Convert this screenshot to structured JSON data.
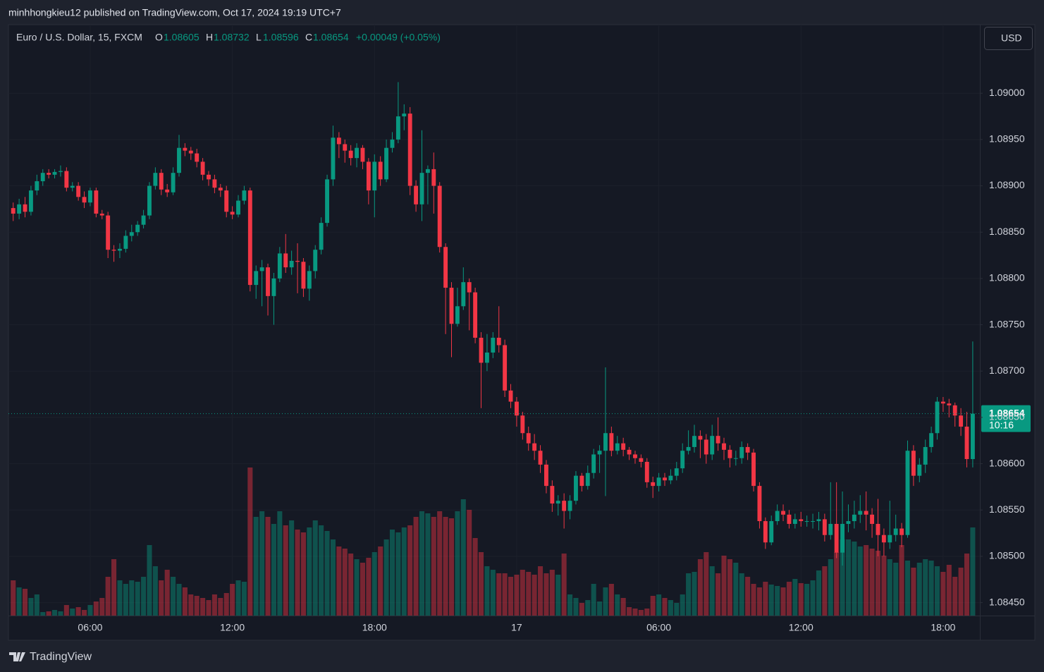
{
  "header": "minhhongkieu12 published on TradingView.com, Oct 17, 2024 19:19 UTC+7",
  "brand": "TradingView",
  "chart_data": {
    "type": "candlestick",
    "title": "Euro / U.S. Dollar, 15, FXCM",
    "legend_keys": [
      "O",
      "H",
      "L",
      "C"
    ],
    "change_label": "+0.00049 (+0.05%)",
    "currency": "USD",
    "countdown": "10:16",
    "up_color": "#089981",
    "down_color": "#f23645",
    "grid": true,
    "xlim": [
      -0.8,
      163.2
    ],
    "xticks": [
      {
        "value": 13,
        "label": "06:00"
      },
      {
        "value": 37,
        "label": "12:00"
      },
      {
        "value": 61,
        "label": "18:00"
      },
      {
        "value": 85,
        "label": "17"
      },
      {
        "value": 109,
        "label": "06:00"
      },
      {
        "value": 133,
        "label": "12:00"
      },
      {
        "value": 157,
        "label": "18:00"
      }
    ],
    "ylim": [
      1.08436,
      1.09074
    ],
    "yticks": [
      {
        "value": 1.0845,
        "label": "1.08450"
      },
      {
        "value": 1.085,
        "label": "1.08500"
      },
      {
        "value": 1.0855,
        "label": "1.08550"
      },
      {
        "value": 1.086,
        "label": "1.08600"
      },
      {
        "value": 1.0865,
        "label": "1.08650"
      },
      {
        "value": 1.087,
        "label": "1.08700"
      },
      {
        "value": 1.0875,
        "label": "1.08750"
      },
      {
        "value": 1.088,
        "label": "1.08800"
      },
      {
        "value": 1.0885,
        "label": "1.08850"
      },
      {
        "value": 1.089,
        "label": "1.08900"
      },
      {
        "value": 1.0895,
        "label": "1.08950"
      },
      {
        "value": 1.09,
        "label": "1.09000"
      }
    ],
    "open": [
      1.08876,
      1.0887,
      1.0888,
      1.08872,
      1.08895,
      1.08905,
      1.08914,
      1.08912,
      1.08915,
      1.08916,
      1.08898,
      1.089,
      1.08888,
      1.08882,
      1.08895,
      1.0887,
      1.08868,
      1.08831,
      1.0883,
      1.08832,
      1.08846,
      1.0885,
      1.08858,
      1.08868,
      1.089,
      1.08914,
      1.08896,
      1.08893,
      1.08914,
      1.08941,
      1.08938,
      1.08935,
      1.08926,
      1.08912,
      1.08907,
      1.08898,
      1.08895,
      1.08872,
      1.08869,
      1.08884,
      1.08895,
      1.08793,
      1.08808,
      1.08812,
      1.08781,
      1.088,
      1.08827,
      1.08812,
      1.08819,
      1.08818,
      1.08789,
      1.08808,
      1.08831,
      1.0886,
      1.08907,
      1.08952,
      1.08945,
      1.08938,
      1.0893,
      1.08941,
      1.08926,
      1.08895,
      1.08926,
      1.08907,
      1.08941,
      1.0895,
      1.08975,
      1.08978,
      1.089,
      1.0888,
      1.08914,
      1.08918,
      1.089,
      1.08834,
      1.0879,
      1.08751,
      1.0877,
      1.08796,
      1.08785,
      1.08736,
      1.08709,
      1.0872,
      1.08736,
      1.08728,
      1.08679,
      1.08667,
      1.08652,
      1.08633,
      1.08622,
      1.08614,
      1.08599,
      1.08576,
      1.08557,
      1.0856,
      1.08549,
      1.0856,
      1.08587,
      1.08576,
      1.0859,
      1.0861,
      1.08614,
      1.08633,
      1.08614,
      1.08622,
      1.08615,
      1.0861,
      1.08606,
      1.08602,
      1.0858,
      1.08576,
      1.08585,
      1.08582,
      1.08587,
      1.08595,
      1.08614,
      1.08618,
      1.0863,
      1.08626,
      1.0861,
      1.0863,
      1.08622,
      1.08615,
      1.08606,
      1.08606,
      1.08618,
      1.08612,
      1.08576,
      1.08538,
      1.08515,
      1.08538,
      1.08549,
      1.08545,
      1.08535,
      1.0854,
      1.08538,
      1.08538,
      1.08538,
      1.0854,
      1.08523,
      1.08535,
      1.08504,
      1.08535,
      1.08538,
      1.08545,
      1.08549,
      1.08545,
      1.08535,
      1.08523,
      1.08515,
      1.08523,
      1.0853,
      1.08523,
      1.08614,
      1.08587,
      1.08599,
      1.08618,
      1.08633,
      1.08667,
      1.08665,
      1.08663,
      1.08652,
      1.0864,
      1.08605
    ],
    "high": [
      1.08882,
      1.08886,
      1.08888,
      1.089,
      1.08912,
      1.08918,
      1.08918,
      1.08918,
      1.08922,
      1.0892,
      1.08904,
      1.08904,
      1.08894,
      1.08898,
      1.08898,
      1.08874,
      1.08872,
      1.08836,
      1.08838,
      1.08852,
      1.08858,
      1.08862,
      1.08874,
      1.08904,
      1.0892,
      1.08918,
      1.08902,
      1.0892,
      1.08955,
      1.08946,
      1.08942,
      1.0894,
      1.0893,
      1.08916,
      1.08912,
      1.08902,
      1.089,
      1.08878,
      1.0889,
      1.089,
      1.08898,
      1.08814,
      1.0882,
      1.08816,
      1.08806,
      1.08834,
      1.08848,
      1.0883,
      1.08838,
      1.08822,
      1.08814,
      1.08836,
      1.08866,
      1.08912,
      1.08965,
      1.08958,
      1.0895,
      1.08944,
      1.08946,
      1.08944,
      1.0893,
      1.08934,
      1.08932,
      1.0895,
      1.08958,
      1.09012,
      1.08988,
      1.08985,
      1.08906,
      1.0896,
      1.08922,
      1.08936,
      1.08904,
      1.08838,
      1.08796,
      1.0879,
      1.08812,
      1.088,
      1.0879,
      1.08742,
      1.0874,
      1.08742,
      1.0877,
      1.08734,
      1.08686,
      1.08672,
      1.08656,
      1.0864,
      1.08632,
      1.0862,
      1.08604,
      1.08582,
      1.08566,
      1.08568,
      1.08566,
      1.08592,
      1.0859,
      1.08598,
      1.08616,
      1.0862,
      1.08704,
      1.0864,
      1.0863,
      1.08628,
      1.08618,
      1.08614,
      1.0861,
      1.08606,
      1.08586,
      1.0859,
      1.0859,
      1.08594,
      1.08602,
      1.08622,
      1.08636,
      1.08642,
      1.08636,
      1.08632,
      1.08642,
      1.0865,
      1.08628,
      1.0862,
      1.08614,
      1.08624,
      1.08622,
      1.08616,
      1.0858,
      1.08542,
      1.08544,
      1.08556,
      1.08556,
      1.0855,
      1.08546,
      1.08548,
      1.08544,
      1.08546,
      1.08548,
      1.08546,
      1.0858,
      1.0858,
      1.0857,
      1.08556,
      1.0856,
      1.08566,
      1.0857,
      1.08552,
      1.08562,
      1.0853,
      1.0856,
      1.08545,
      1.08536,
      1.08625,
      1.0862,
      1.08606,
      1.08626,
      1.0864,
      1.08672,
      1.08672,
      1.0867,
      1.08666,
      1.0866,
      1.08656,
      1.08732
    ],
    "low": [
      1.08862,
      1.08864,
      1.08866,
      1.08868,
      1.0889,
      1.089,
      1.08908,
      1.08908,
      1.0891,
      1.08894,
      1.08894,
      1.08884,
      1.08876,
      1.08878,
      1.08866,
      1.08864,
      1.08822,
      1.08818,
      1.08822,
      1.08828,
      1.0884,
      1.08846,
      1.08854,
      1.08864,
      1.08896,
      1.0889,
      1.08888,
      1.0889,
      1.0891,
      1.08932,
      1.08928,
      1.0892,
      1.08906,
      1.089,
      1.08892,
      1.08888,
      1.08866,
      1.08864,
      1.08866,
      1.0888,
      1.08786,
      1.08778,
      1.0877,
      1.0876,
      1.0875,
      1.08796,
      1.08806,
      1.08804,
      1.08784,
      1.0878,
      1.08776,
      1.088,
      1.08826,
      1.08856,
      1.089,
      1.0893,
      1.08925,
      1.08922,
      1.0892,
      1.08918,
      1.0888,
      1.08866,
      1.089,
      1.08904,
      1.08936,
      1.08946,
      1.0896,
      1.0889,
      1.08872,
      1.08862,
      1.0888,
      1.0887,
      1.08828,
      1.0874,
      1.08715,
      1.08748,
      1.08766,
      1.08744,
      1.0873,
      1.0866,
      1.087,
      1.08714,
      1.0872,
      1.08672,
      1.0866,
      1.0864,
      1.08626,
      1.08614,
      1.08604,
      1.0859,
      1.08568,
      1.08548,
      1.08544,
      1.0853,
      1.0854,
      1.08556,
      1.0857,
      1.08572,
      1.08584,
      1.0859,
      1.08565,
      1.08608,
      1.0861,
      1.08608,
      1.08604,
      1.086,
      1.08596,
      1.08574,
      1.08563,
      1.0857,
      1.08576,
      1.08578,
      1.08582,
      1.0859,
      1.0861,
      1.08612,
      1.08606,
      1.086,
      1.08604,
      1.08614,
      1.08604,
      1.08596,
      1.08598,
      1.086,
      1.08604,
      1.0857,
      1.0853,
      1.08508,
      1.08512,
      1.08534,
      1.08538,
      1.0853,
      1.0853,
      1.08532,
      1.08532,
      1.0853,
      1.08528,
      1.08516,
      1.08518,
      1.08498,
      1.0849,
      1.08526,
      1.0853,
      1.08536,
      1.08528,
      1.0852,
      1.085,
      1.085,
      1.08508,
      1.08516,
      1.0851,
      1.0852,
      1.08576,
      1.0858,
      1.0859,
      1.08612,
      1.08626,
      1.08656,
      1.0865,
      1.0864,
      1.0863,
      1.08596,
      1.08596
    ],
    "close": [
      1.0887,
      1.0888,
      1.08872,
      1.08895,
      1.08905,
      1.08914,
      1.08912,
      1.08915,
      1.08916,
      1.08898,
      1.089,
      1.08888,
      1.08882,
      1.08895,
      1.0887,
      1.08868,
      1.08831,
      1.0883,
      1.08832,
      1.08846,
      1.0885,
      1.08858,
      1.08868,
      1.089,
      1.08914,
      1.08896,
      1.08893,
      1.08914,
      1.08941,
      1.08938,
      1.08935,
      1.08926,
      1.08912,
      1.08907,
      1.08898,
      1.08895,
      1.08872,
      1.08869,
      1.08884,
      1.08895,
      1.08793,
      1.08808,
      1.08812,
      1.08781,
      1.088,
      1.08827,
      1.08812,
      1.08819,
      1.08818,
      1.08789,
      1.08808,
      1.08831,
      1.0886,
      1.08907,
      1.08952,
      1.08945,
      1.08938,
      1.0893,
      1.08941,
      1.08926,
      1.08895,
      1.08926,
      1.08907,
      1.08941,
      1.0895,
      1.08975,
      1.08978,
      1.089,
      1.0888,
      1.08914,
      1.08918,
      1.089,
      1.08834,
      1.0879,
      1.08751,
      1.0877,
      1.08796,
      1.08785,
      1.08736,
      1.08709,
      1.0872,
      1.08736,
      1.08728,
      1.08679,
      1.08667,
      1.08652,
      1.08633,
      1.08622,
      1.08614,
      1.08599,
      1.08576,
      1.08557,
      1.0856,
      1.08549,
      1.0856,
      1.08587,
      1.08576,
      1.0859,
      1.0861,
      1.08614,
      1.08633,
      1.08614,
      1.08622,
      1.08615,
      1.0861,
      1.08606,
      1.08602,
      1.0858,
      1.08576,
      1.08585,
      1.08582,
      1.08587,
      1.08595,
      1.08614,
      1.08618,
      1.0863,
      1.08626,
      1.0861,
      1.0863,
      1.08622,
      1.08615,
      1.08606,
      1.08606,
      1.08618,
      1.08612,
      1.08576,
      1.08538,
      1.08515,
      1.08538,
      1.08549,
      1.08545,
      1.08535,
      1.0854,
      1.08538,
      1.08538,
      1.08538,
      1.0854,
      1.08523,
      1.08535,
      1.08504,
      1.08535,
      1.08538,
      1.08545,
      1.08549,
      1.08545,
      1.08535,
      1.08523,
      1.08515,
      1.08523,
      1.0853,
      1.08523,
      1.08614,
      1.08587,
      1.08599,
      1.08618,
      1.08633,
      1.08667,
      1.08665,
      1.08663,
      1.08652,
      1.0864,
      1.08605,
      1.08654
    ],
    "volume": [
      50,
      40,
      38,
      25,
      30,
      5,
      6,
      8,
      6,
      15,
      10,
      12,
      8,
      15,
      20,
      25,
      55,
      80,
      50,
      45,
      50,
      48,
      55,
      100,
      70,
      50,
      65,
      55,
      45,
      40,
      30,
      28,
      25,
      22,
      30,
      25,
      32,
      45,
      50,
      48,
      210,
      140,
      148,
      140,
      130,
      148,
      128,
      135,
      122,
      118,
      125,
      135,
      128,
      120,
      108,
      98,
      95,
      88,
      80,
      75,
      82,
      90,
      98,
      108,
      122,
      118,
      125,
      128,
      140,
      148,
      145,
      140,
      148,
      140,
      138,
      148,
      165,
      150,
      110,
      90,
      70,
      65,
      60,
      60,
      55,
      58,
      65,
      62,
      58,
      70,
      60,
      65,
      58,
      88,
      30,
      25,
      18,
      22,
      45,
      20,
      40,
      45,
      30,
      25,
      12,
      10,
      8,
      10,
      28,
      30,
      25,
      22,
      18,
      30,
      60,
      62,
      80,
      90,
      70,
      60,
      85,
      80,
      75,
      60,
      55,
      45,
      40,
      48,
      44,
      42,
      40,
      48,
      52,
      46,
      45,
      50,
      64,
      70,
      80,
      90,
      108,
      108,
      105,
      98,
      100,
      95,
      92,
      85,
      80,
      75,
      100,
      78,
      68,
      75,
      80,
      78,
      70,
      62,
      72,
      55,
      68,
      88,
      125
    ]
  }
}
